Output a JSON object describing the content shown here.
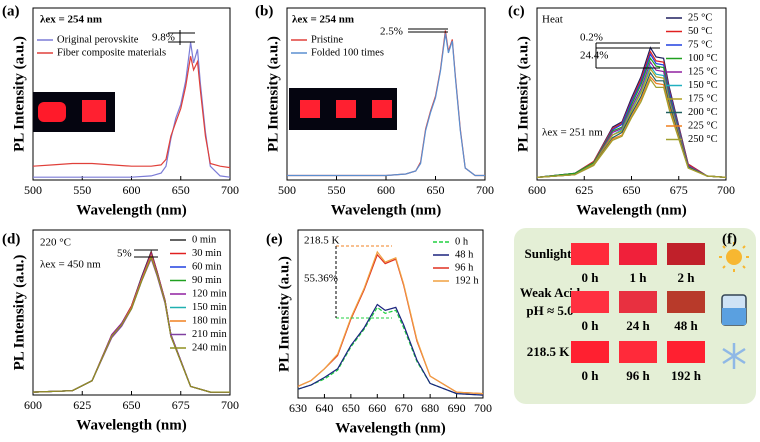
{
  "chart_data": [
    {
      "type": "line",
      "panel_label": "(a)",
      "xlabel": "Wavelength (nm)",
      "ylabel": "PL Intensity (a.u.)",
      "xlim": [
        500,
        700
      ],
      "xticks": [
        500,
        550,
        600,
        650,
        700
      ],
      "ylim": [
        0,
        1.25
      ],
      "legend": "upper left",
      "annotations": [
        "λex = 254 nm",
        "9.8%"
      ],
      "x": [
        500,
        520,
        540,
        560,
        580,
        600,
        620,
        630,
        635,
        640,
        645,
        650,
        655,
        660,
        663,
        667,
        670,
        675,
        680,
        690,
        700
      ],
      "series": [
        {
          "name": "Original perovskite",
          "color": "#7b7bd6",
          "values": [
            0.02,
            0.02,
            0.02,
            0.02,
            0.02,
            0.02,
            0.03,
            0.05,
            0.1,
            0.3,
            0.45,
            0.55,
            0.72,
            1.0,
            0.85,
            0.95,
            0.7,
            0.35,
            0.1,
            0.03,
            0.02
          ]
        },
        {
          "name": "Fiber composite materials",
          "color": "#e0403a",
          "values": [
            0.1,
            0.11,
            0.12,
            0.12,
            0.11,
            0.1,
            0.1,
            0.11,
            0.15,
            0.32,
            0.42,
            0.52,
            0.68,
            0.9,
            0.8,
            0.86,
            0.65,
            0.32,
            0.12,
            0.1,
            0.09
          ]
        }
      ]
    },
    {
      "type": "line",
      "panel_label": "(b)",
      "xlabel": "Wavelength (nm)",
      "ylabel": "PL Intensity (a.u.)",
      "xlim": [
        500,
        700
      ],
      "xticks": [
        500,
        550,
        600,
        650,
        700
      ],
      "ylim": [
        0,
        1.15
      ],
      "legend": "upper left",
      "annotations": [
        "λex = 254 nm",
        "2.5%"
      ],
      "x": [
        500,
        520,
        540,
        560,
        580,
        600,
        620,
        630,
        635,
        640,
        645,
        650,
        655,
        660,
        663,
        667,
        670,
        675,
        680,
        690,
        700
      ],
      "series": [
        {
          "name": "Pristine",
          "color": "#e0403a",
          "values": [
            0.03,
            0.03,
            0.03,
            0.03,
            0.03,
            0.03,
            0.04,
            0.06,
            0.12,
            0.34,
            0.46,
            0.56,
            0.74,
            1.0,
            0.86,
            0.94,
            0.7,
            0.34,
            0.08,
            0.03,
            0.03
          ]
        },
        {
          "name": "Folded 100 times",
          "color": "#5b8fd0",
          "values": [
            0.03,
            0.03,
            0.03,
            0.03,
            0.03,
            0.03,
            0.04,
            0.06,
            0.11,
            0.33,
            0.45,
            0.55,
            0.73,
            0.98,
            0.85,
            0.93,
            0.69,
            0.33,
            0.08,
            0.03,
            0.03
          ]
        }
      ]
    },
    {
      "type": "line",
      "panel_label": "(c)",
      "xlabel": "Wavelength (nm)",
      "ylabel": "PL Intensity (a.u.)",
      "xlim": [
        600,
        700
      ],
      "xticks": [
        600,
        625,
        650,
        675,
        700
      ],
      "ylim": [
        0,
        1.3
      ],
      "legend": "upper right",
      "annotations": [
        "Heat",
        "0.2%",
        "24.4%",
        "λex = 251 nm"
      ],
      "x": [
        600,
        620,
        630,
        640,
        645,
        650,
        655,
        660,
        663,
        667,
        670,
        680,
        690,
        700
      ],
      "series": [
        {
          "name": "25 °C",
          "color": "#1f1f5f",
          "values": [
            0.02,
            0.05,
            0.14,
            0.4,
            0.44,
            0.62,
            0.78,
            1.0,
            0.93,
            0.92,
            0.7,
            0.12,
            0.03,
            0.02
          ]
        },
        {
          "name": "50 °C",
          "color": "#e02020",
          "values": [
            0.02,
            0.05,
            0.14,
            0.39,
            0.43,
            0.6,
            0.76,
            0.97,
            0.9,
            0.89,
            0.68,
            0.12,
            0.03,
            0.02
          ]
        },
        {
          "name": "75 °C",
          "color": "#2040e0",
          "values": [
            0.02,
            0.05,
            0.13,
            0.38,
            0.42,
            0.59,
            0.74,
            0.95,
            0.88,
            0.87,
            0.67,
            0.11,
            0.03,
            0.02
          ]
        },
        {
          "name": "100 °C",
          "color": "#20a020",
          "values": [
            0.02,
            0.05,
            0.13,
            0.37,
            0.4,
            0.57,
            0.72,
            0.92,
            0.86,
            0.85,
            0.64,
            0.11,
            0.03,
            0.02
          ]
        },
        {
          "name": "125 °C",
          "color": "#9020a0",
          "values": [
            0.02,
            0.04,
            0.12,
            0.36,
            0.39,
            0.55,
            0.69,
            0.89,
            0.83,
            0.82,
            0.62,
            0.11,
            0.03,
            0.02
          ]
        },
        {
          "name": "150 °C",
          "color": "#20b0c0",
          "values": [
            0.02,
            0.04,
            0.12,
            0.34,
            0.38,
            0.53,
            0.67,
            0.86,
            0.8,
            0.79,
            0.6,
            0.1,
            0.03,
            0.02
          ]
        },
        {
          "name": "175 °C",
          "color": "#b0a020",
          "values": [
            0.02,
            0.04,
            0.12,
            0.34,
            0.37,
            0.52,
            0.66,
            0.84,
            0.78,
            0.77,
            0.59,
            0.1,
            0.03,
            0.02
          ]
        },
        {
          "name": "200 °C",
          "color": "#206060",
          "values": [
            0.02,
            0.04,
            0.11,
            0.32,
            0.36,
            0.5,
            0.63,
            0.81,
            0.75,
            0.75,
            0.57,
            0.1,
            0.03,
            0.02
          ]
        },
        {
          "name": "225 °C",
          "color": "#f08020",
          "values": [
            0.02,
            0.04,
            0.11,
            0.31,
            0.34,
            0.48,
            0.61,
            0.78,
            0.73,
            0.72,
            0.55,
            0.09,
            0.03,
            0.02
          ]
        },
        {
          "name": "250 °C",
          "color": "#a0a030",
          "values": [
            0.02,
            0.04,
            0.11,
            0.3,
            0.33,
            0.47,
            0.59,
            0.76,
            0.7,
            0.7,
            0.53,
            0.09,
            0.03,
            0.02
          ]
        }
      ]
    },
    {
      "type": "line",
      "panel_label": "(d)",
      "xlabel": "Wavelength (nm)",
      "ylabel": "PL Intensity (a.u.)",
      "xlim": [
        600,
        700
      ],
      "xticks": [
        600,
        625,
        650,
        675,
        700
      ],
      "ylim": [
        0,
        1.15
      ],
      "legend": "upper right",
      "annotations": [
        "220 °C",
        "λex = 450 nm",
        "5%"
      ],
      "x": [
        600,
        620,
        630,
        640,
        645,
        650,
        655,
        660,
        663,
        667,
        670,
        680,
        690,
        700
      ],
      "series": [
        {
          "name": "0 min",
          "color": "#303030",
          "values": [
            0.02,
            0.03,
            0.1,
            0.42,
            0.5,
            0.62,
            0.82,
            1.0,
            0.86,
            0.66,
            0.42,
            0.06,
            0.02,
            0.02
          ]
        },
        {
          "name": "30 min",
          "color": "#e02020",
          "values": [
            0.02,
            0.03,
            0.1,
            0.42,
            0.5,
            0.62,
            0.81,
            0.99,
            0.86,
            0.66,
            0.42,
            0.06,
            0.02,
            0.02
          ]
        },
        {
          "name": "60 min",
          "color": "#2040e0",
          "values": [
            0.02,
            0.03,
            0.1,
            0.41,
            0.5,
            0.61,
            0.81,
            0.98,
            0.85,
            0.65,
            0.42,
            0.06,
            0.02,
            0.02
          ]
        },
        {
          "name": "90 min",
          "color": "#20a020",
          "values": [
            0.02,
            0.03,
            0.1,
            0.41,
            0.49,
            0.61,
            0.8,
            0.97,
            0.85,
            0.65,
            0.41,
            0.06,
            0.02,
            0.02
          ]
        },
        {
          "name": "120 min",
          "color": "#9020a0",
          "values": [
            0.02,
            0.03,
            0.1,
            0.42,
            0.5,
            0.61,
            0.81,
            0.98,
            0.85,
            0.66,
            0.42,
            0.06,
            0.02,
            0.02
          ]
        },
        {
          "name": "150 min",
          "color": "#20b0b0",
          "values": [
            0.02,
            0.03,
            0.1,
            0.41,
            0.49,
            0.6,
            0.79,
            0.96,
            0.84,
            0.65,
            0.41,
            0.06,
            0.02,
            0.02
          ]
        },
        {
          "name": "180 min",
          "color": "#f08020",
          "values": [
            0.02,
            0.03,
            0.1,
            0.41,
            0.49,
            0.61,
            0.8,
            0.97,
            0.84,
            0.65,
            0.41,
            0.06,
            0.02,
            0.02
          ]
        },
        {
          "name": "210 min",
          "color": "#8040a0",
          "values": [
            0.02,
            0.03,
            0.1,
            0.4,
            0.48,
            0.6,
            0.79,
            0.95,
            0.83,
            0.64,
            0.41,
            0.06,
            0.02,
            0.02
          ]
        },
        {
          "name": "240 min",
          "color": "#909020",
          "values": [
            0.02,
            0.03,
            0.1,
            0.41,
            0.49,
            0.6,
            0.79,
            0.96,
            0.84,
            0.65,
            0.41,
            0.06,
            0.02,
            0.02
          ]
        }
      ]
    },
    {
      "type": "line",
      "panel_label": "(e)",
      "xlabel": "Wavelength (nm)",
      "ylabel": "PL Intensity (a.u.)",
      "xlim": [
        630,
        700
      ],
      "xticks": [
        630,
        640,
        650,
        660,
        670,
        680,
        690,
        700
      ],
      "ylim": [
        0,
        1.15
      ],
      "legend": "upper right",
      "annotations": [
        "218.5 K",
        "55.36%"
      ],
      "x": [
        630,
        635,
        640,
        645,
        650,
        655,
        660,
        663,
        667,
        670,
        675,
        680,
        690,
        700
      ],
      "series": [
        {
          "name": "0 h",
          "color": "#20d040",
          "dash": true,
          "values": [
            0.06,
            0.09,
            0.13,
            0.19,
            0.35,
            0.47,
            0.62,
            0.58,
            0.6,
            0.48,
            0.25,
            0.1,
            0.03,
            0.02
          ]
        },
        {
          "name": "48 h",
          "color": "#1a237e",
          "values": [
            0.06,
            0.09,
            0.14,
            0.2,
            0.36,
            0.48,
            0.64,
            0.6,
            0.62,
            0.5,
            0.26,
            0.1,
            0.03,
            0.02
          ]
        },
        {
          "name": "96 h",
          "color": "#e03020",
          "values": [
            0.08,
            0.12,
            0.2,
            0.29,
            0.54,
            0.74,
            0.98,
            0.92,
            0.95,
            0.77,
            0.39,
            0.15,
            0.04,
            0.03
          ]
        },
        {
          "name": "192 h",
          "color": "#f0a040",
          "values": [
            0.08,
            0.12,
            0.2,
            0.3,
            0.55,
            0.75,
            1.0,
            0.93,
            0.96,
            0.78,
            0.4,
            0.15,
            0.04,
            0.03
          ]
        }
      ]
    }
  ],
  "panel_f": {
    "label": "(f)",
    "rows": [
      {
        "name": "Sunlight",
        "times": [
          "0 h",
          "1 h",
          "2 h"
        ]
      },
      {
        "name": "Weak Acid",
        "subname": "pH ≈ 5.0",
        "times": [
          "0 h",
          "24 h",
          "48 h"
        ]
      },
      {
        "name": "218.5 K",
        "times": [
          "0 h",
          "96 h",
          "192 h"
        ]
      }
    ]
  }
}
